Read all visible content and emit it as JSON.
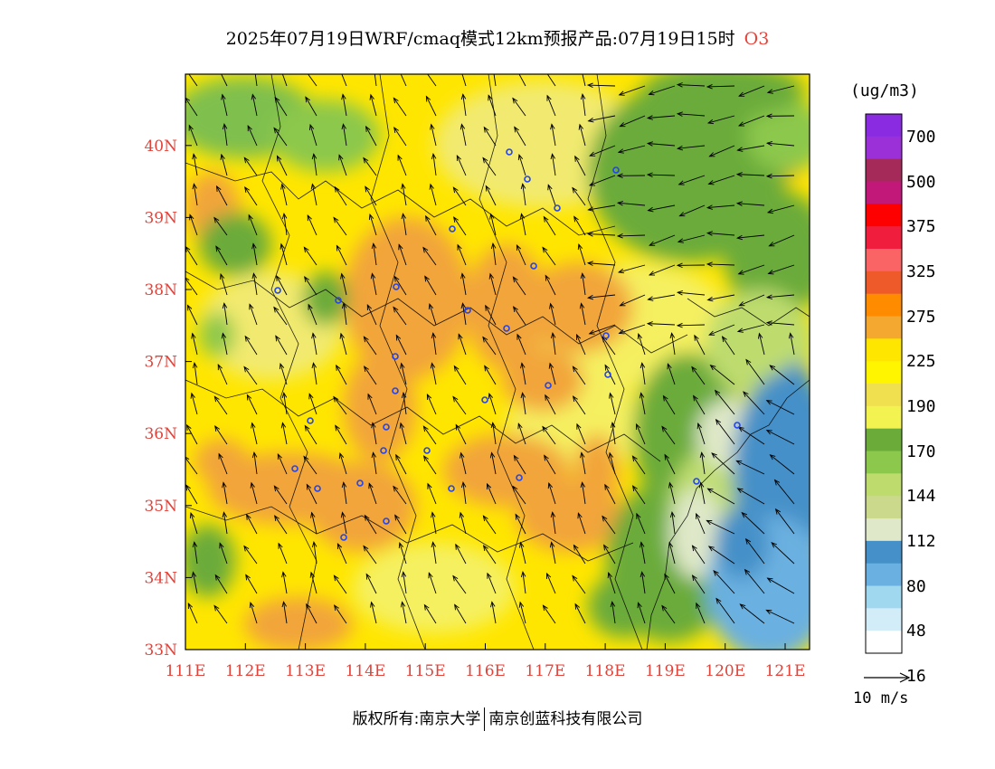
{
  "title": {
    "text": "2025年07月19日WRF/cmaq模式12km预报产品:07月19日15时",
    "pollutant": "O3"
  },
  "map": {
    "lon_ticks": [
      "111E",
      "112E",
      "113E",
      "114E",
      "115E",
      "116E",
      "117E",
      "118E",
      "119E",
      "120E",
      "121E"
    ],
    "lat_ticks": [
      "33N",
      "34N",
      "35N",
      "36N",
      "37N",
      "38N",
      "39N",
      "40N"
    ]
  },
  "colorbar": {
    "unit": "(ug/m3)",
    "labels": [
      "700",
      "500",
      "375",
      "325",
      "275",
      "225",
      "190",
      "170",
      "144",
      "112",
      "80",
      "48",
      "16"
    ],
    "colors": [
      "#8a2be2",
      "#9b30d9",
      "#a52a5a",
      "#c2187a",
      "#ff0000",
      "#f01e3c",
      "#fa6464",
      "#ee5a2a",
      "#ff8c00",
      "#f5a830",
      "#ffe600",
      "#fff500",
      "#f0e050",
      "#f2f250",
      "#6aab3a",
      "#8cc84b",
      "#bedc6e",
      "#cbd98c",
      "#dfe8c8",
      "#4590c8",
      "#6ab0e0",
      "#a0d8f0",
      "#d2ecf8",
      "#ffffff"
    ]
  },
  "wind": {
    "reference_label": "10 m/s"
  },
  "footer": {
    "left": "版权所有:南京大学",
    "right": "南京创蓝科技有限公司"
  }
}
